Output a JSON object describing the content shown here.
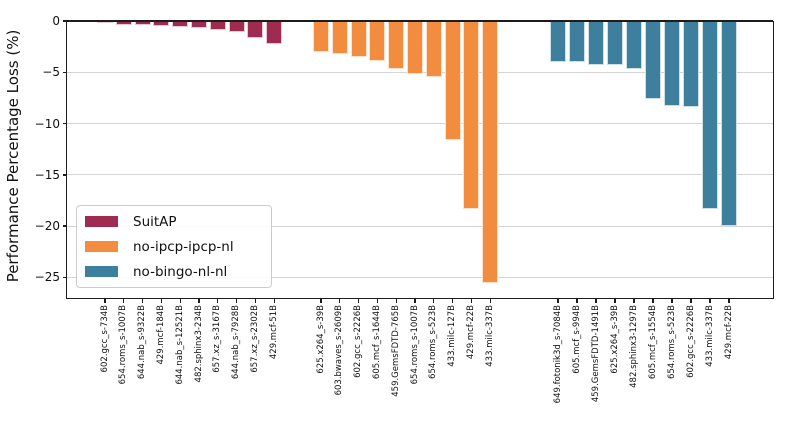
{
  "chart_data": {
    "type": "bar",
    "title": "",
    "xlabel": "",
    "ylabel": "Performance Percentage Loss (%)",
    "ylim": [
      -27,
      0
    ],
    "yticks": [
      0,
      -5,
      -10,
      -15,
      -20,
      -25
    ],
    "ytick_labels": [
      "0",
      "−5",
      "−10",
      "−15",
      "−20",
      "−25"
    ],
    "grid": true,
    "legend_position": "lower-left",
    "bar_edge_color": "#ffffff",
    "series": [
      {
        "name": "SuitAP",
        "color": "#9f2b51",
        "categories": [
          "602.gcc_s-734B",
          "654.roms_s-1007B",
          "644.nab_s-9322B",
          "429.mcf-184B",
          "644.nab_s-12521B",
          "482.sphinx3-234B",
          "657.xz_s-3167B",
          "644.nab_s-7928B",
          "657.xz_s-2302B",
          "429.mcf-51B"
        ],
        "values": [
          -0.2,
          -0.35,
          -0.4,
          -0.5,
          -0.6,
          -0.7,
          -0.85,
          -1.05,
          -1.65,
          -2.2
        ]
      },
      {
        "name": "no-ipcp-ipcp-nl",
        "color": "#f28c3e",
        "categories": [
          "625.x264_s-39B",
          "603.bwaves_s-2609B",
          "602.gcc_s-2226B",
          "605.mcf_s-1644B",
          "459.GemsFDTD-765B",
          "654.roms_s-1007B",
          "654.roms_s-523B",
          "433.milc-127B",
          "429.mcf-22B",
          "433.milc-337B"
        ],
        "values": [
          -3.0,
          -3.25,
          -3.5,
          -3.9,
          -4.65,
          -5.2,
          -5.45,
          -11.6,
          -18.3,
          -25.5
        ]
      },
      {
        "name": "no-bingo-nl-nl",
        "color": "#3e7f9d",
        "categories": [
          "649.fotonik3d_s-7084B",
          "605.mcf_s-994B",
          "459.GemsFDTD-1491B",
          "625.x264_s-39B",
          "482.sphinx3-1297B",
          "605.mcf_s-1554B",
          "654.roms_s-523B",
          "602.gcc_s-2226B",
          "433.milc-337B",
          "429.mcf-22B"
        ],
        "values": [
          -3.95,
          -3.95,
          -4.25,
          -4.3,
          -4.65,
          -7.65,
          -8.3,
          -8.35,
          -18.3,
          -20.0
        ]
      }
    ]
  }
}
